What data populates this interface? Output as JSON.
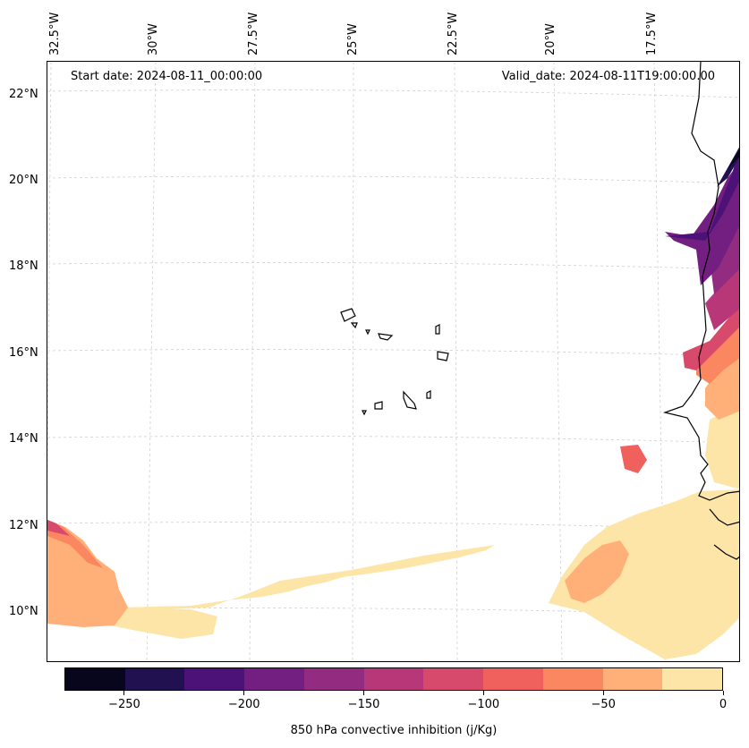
{
  "map": {
    "start_date": "Start date: 2024-08-11_00:00:00",
    "valid_date": "Valid_date: 2024-08-11T19:00:00.00",
    "lon_labels": [
      "32.5°W",
      "30°W",
      "27.5°W",
      "25°W",
      "22.5°W",
      "20°W",
      "17.5°W"
    ],
    "lat_labels": [
      "22°N",
      "20°N",
      "18°N",
      "16°N",
      "14°N",
      "12°N",
      "10°N"
    ],
    "extent": {
      "lon_min": -33.0,
      "lon_max": -15.5,
      "lat_min": 9.0,
      "lat_max": 22.5
    }
  },
  "colorbar": {
    "title": "850 hPa convective inhibition (j/Kg)",
    "tick_labels": [
      "−250",
      "−200",
      "−150",
      "−100",
      "−50",
      "0"
    ],
    "tick_values": [
      -250,
      -200,
      -150,
      -100,
      -50,
      0
    ],
    "range": [
      -275,
      0
    ],
    "colors": [
      "#07061c",
      "#221150",
      "#4d1277",
      "#721f81",
      "#932b80",
      "#b73779",
      "#d84a6c",
      "#f0605d",
      "#fb8761",
      "#feb078",
      "#fde5a7"
    ]
  }
}
